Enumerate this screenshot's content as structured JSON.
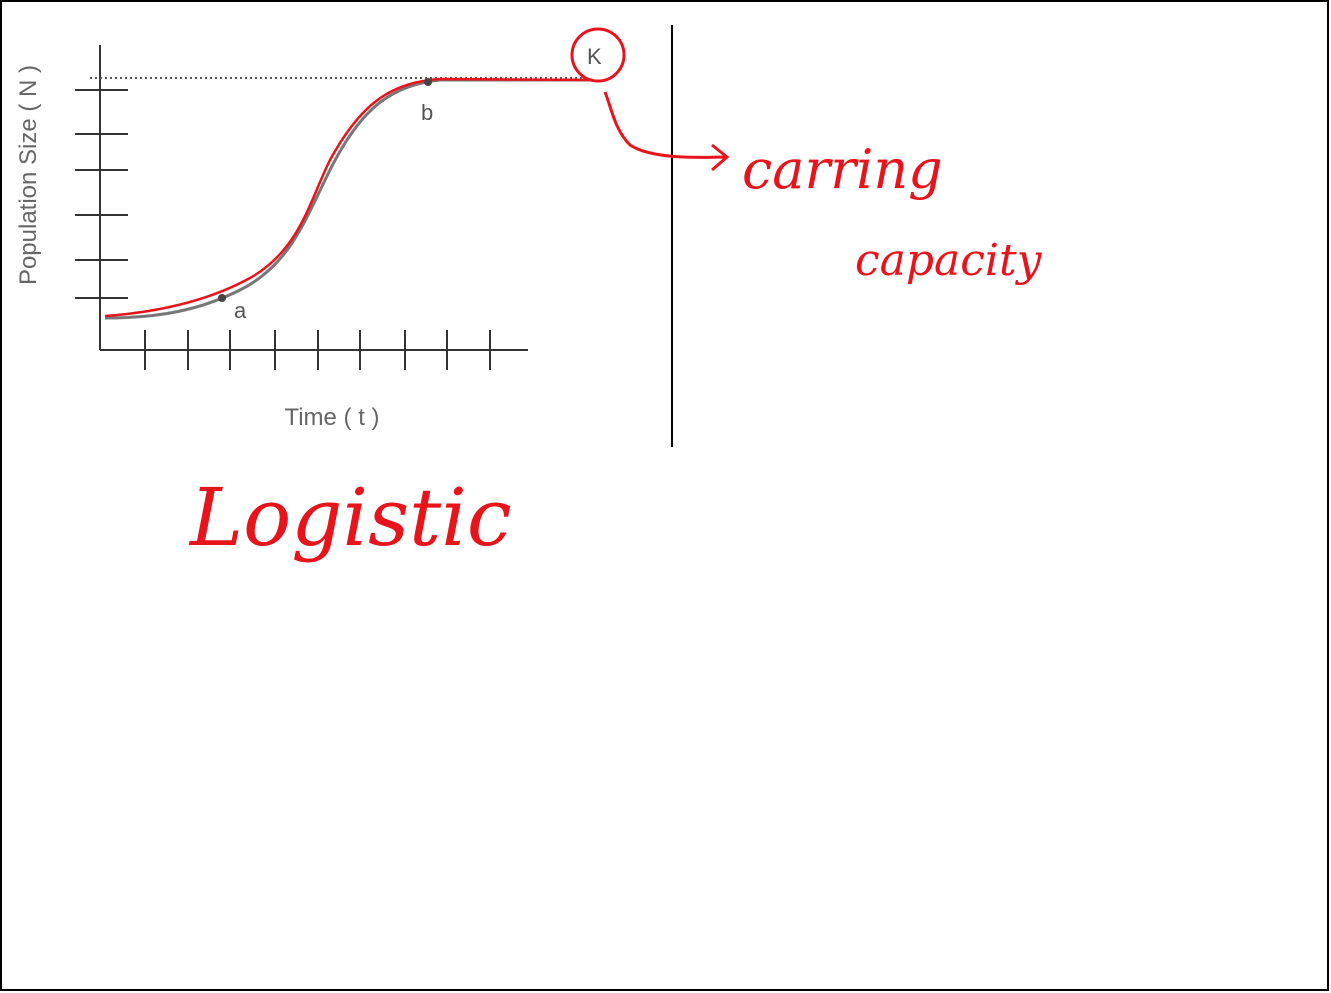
{
  "figure": {
    "y_axis_label": "Population Size ( N )",
    "x_axis_label": "Time ( t )",
    "point_a": "a",
    "point_b": "b",
    "k_label": "K"
  },
  "annotations": {
    "carrying_1": "carring",
    "carrying_2": "capacity",
    "curve_name": "Logistic"
  }
}
